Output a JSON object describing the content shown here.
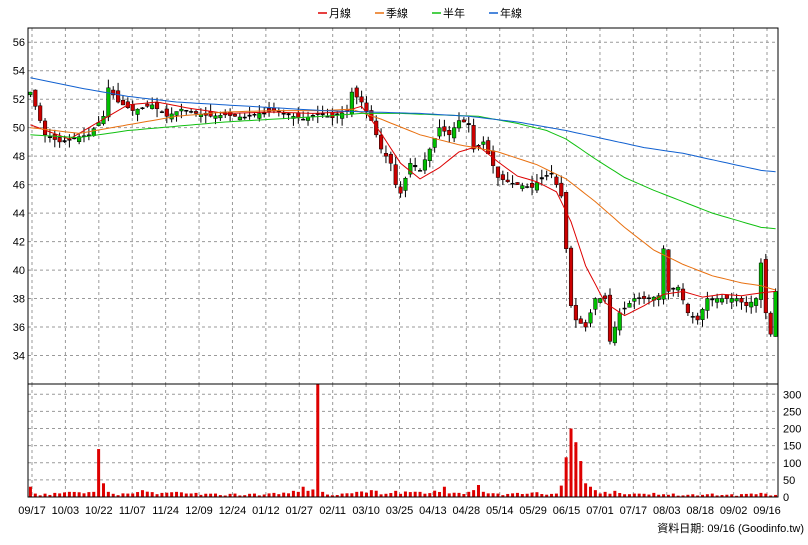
{
  "chart_data": {
    "type": "candlestick",
    "legend": [
      {
        "name": "月線",
        "color": "#dd0000"
      },
      {
        "name": "季線",
        "color": "#e87010"
      },
      {
        "name": "半年",
        "color": "#10c010"
      },
      {
        "name": "年線",
        "color": "#1060d0"
      }
    ],
    "x_tick_labels": [
      "09/17",
      "10/03",
      "10/22",
      "11/07",
      "11/24",
      "12/09",
      "12/24",
      "01/12",
      "01/27",
      "02/11",
      "03/10",
      "03/25",
      "04/13",
      "04/28",
      "05/14",
      "05/29",
      "06/15",
      "07/01",
      "07/17",
      "08/03",
      "08/18",
      "09/02",
      "09/16"
    ],
    "price_axis": {
      "ticks": [
        34,
        36,
        38,
        40,
        42,
        44,
        46,
        48,
        50,
        52,
        54,
        56
      ],
      "ylim": [
        32,
        57
      ]
    },
    "volume_axis": {
      "ticks": [
        0,
        50,
        100,
        150,
        200,
        250,
        300
      ],
      "ylim": [
        0,
        330
      ]
    },
    "colors": {
      "up": "#00c000",
      "down": "#cc0000",
      "flat": "#000000",
      "volume": "#dd0000"
    },
    "footer": "資料日期: 09/16  (Goodinfo.tw)",
    "series": {
      "close_anchors": [
        [
          0,
          52.5
        ],
        [
          3,
          49.5
        ],
        [
          6,
          49
        ],
        [
          9,
          49.3
        ],
        [
          12,
          49.5
        ],
        [
          15,
          50.8
        ],
        [
          16,
          52.8
        ],
        [
          18,
          51.8
        ],
        [
          21,
          51.2
        ],
        [
          25,
          51.6
        ],
        [
          28,
          50.8
        ],
        [
          31,
          51.3
        ],
        [
          34,
          51.0
        ],
        [
          37,
          50.8
        ],
        [
          40,
          50.9
        ],
        [
          44,
          50.7
        ],
        [
          47,
          51.0
        ],
        [
          50,
          51.2
        ],
        [
          53,
          50.9
        ],
        [
          56,
          50.6
        ],
        [
          59,
          51.0
        ],
        [
          62,
          50.7
        ],
        [
          65,
          51.2
        ],
        [
          66,
          52.5
        ],
        [
          68,
          51.8
        ],
        [
          70,
          50.5
        ],
        [
          72,
          48.5
        ],
        [
          74,
          47.5
        ],
        [
          75,
          46.0
        ],
        [
          76,
          45.4
        ],
        [
          78,
          47.5
        ],
        [
          80,
          47.0
        ],
        [
          82,
          48.5
        ],
        [
          84,
          50.0
        ],
        [
          86,
          49.5
        ],
        [
          88,
          50.5
        ],
        [
          90,
          50.3
        ],
        [
          91,
          48.5
        ],
        [
          93,
          49.0
        ],
        [
          96,
          46.5
        ],
        [
          98,
          46.2
        ],
        [
          100,
          46.0
        ],
        [
          103,
          45.8
        ],
        [
          105,
          46.5
        ],
        [
          107,
          46.8
        ],
        [
          109,
          45.2
        ],
        [
          110,
          41.5
        ],
        [
          111,
          37.5
        ],
        [
          112,
          36.5
        ],
        [
          114,
          36.0
        ],
        [
          116,
          38.0
        ],
        [
          118,
          38.0
        ],
        [
          119,
          35.0
        ],
        [
          121,
          37.0
        ],
        [
          124,
          38.0
        ],
        [
          127,
          38.0
        ],
        [
          129,
          38.2
        ],
        [
          130,
          41.5
        ],
        [
          131,
          38.5
        ],
        [
          133,
          38.8
        ],
        [
          135,
          37.0
        ],
        [
          137,
          36.5
        ],
        [
          139,
          38.0
        ],
        [
          141,
          38.0
        ],
        [
          143,
          38.0
        ],
        [
          145,
          38.0
        ],
        [
          147,
          37.5
        ],
        [
          149,
          38.0
        ],
        [
          150,
          40.5
        ],
        [
          151,
          37.0
        ],
        [
          152,
          35.5
        ],
        [
          153,
          38.5
        ]
      ],
      "ma20_anchors": [
        [
          0,
          50.2
        ],
        [
          8,
          49.2
        ],
        [
          14,
          50.4
        ],
        [
          20,
          51.6
        ],
        [
          26,
          51.8
        ],
        [
          32,
          51.4
        ],
        [
          40,
          51.0
        ],
        [
          50,
          51.1
        ],
        [
          58,
          51.0
        ],
        [
          64,
          51.1
        ],
        [
          68,
          51.5
        ],
        [
          72,
          49.6
        ],
        [
          76,
          47.5
        ],
        [
          80,
          46.4
        ],
        [
          84,
          47.2
        ],
        [
          88,
          48.3
        ],
        [
          92,
          48.7
        ],
        [
          96,
          47.6
        ],
        [
          100,
          46.6
        ],
        [
          104,
          46.2
        ],
        [
          108,
          45.5
        ],
        [
          111,
          43.4
        ],
        [
          114,
          40.3
        ],
        [
          118,
          37.7
        ],
        [
          122,
          36.8
        ],
        [
          126,
          37.5
        ],
        [
          130,
          38.3
        ],
        [
          134,
          38.5
        ],
        [
          138,
          38.1
        ],
        [
          142,
          38.3
        ],
        [
          146,
          38.2
        ],
        [
          150,
          38.4
        ],
        [
          153,
          38.5
        ]
      ],
      "ma60_anchors": [
        [
          0,
          50.0
        ],
        [
          10,
          49.6
        ],
        [
          20,
          50.2
        ],
        [
          30,
          50.8
        ],
        [
          40,
          51.1
        ],
        [
          50,
          51.2
        ],
        [
          60,
          51.2
        ],
        [
          66,
          51.3
        ],
        [
          72,
          50.6
        ],
        [
          80,
          49.5
        ],
        [
          88,
          48.8
        ],
        [
          96,
          48.3
        ],
        [
          104,
          47.4
        ],
        [
          110,
          46.4
        ],
        [
          116,
          44.8
        ],
        [
          122,
          43.0
        ],
        [
          128,
          41.4
        ],
        [
          134,
          40.4
        ],
        [
          140,
          39.6
        ],
        [
          146,
          39.1
        ],
        [
          150,
          38.9
        ],
        [
          153,
          38.6
        ]
      ],
      "ma120_anchors": [
        [
          0,
          49.5
        ],
        [
          10,
          49.3
        ],
        [
          20,
          49.8
        ],
        [
          30,
          50.1
        ],
        [
          40,
          50.4
        ],
        [
          50,
          50.6
        ],
        [
          60,
          50.8
        ],
        [
          68,
          51.0
        ],
        [
          76,
          51.0
        ],
        [
          84,
          50.9
        ],
        [
          92,
          50.8
        ],
        [
          100,
          50.3
        ],
        [
          106,
          49.8
        ],
        [
          110,
          49.2
        ],
        [
          116,
          47.8
        ],
        [
          122,
          46.5
        ],
        [
          128,
          45.6
        ],
        [
          134,
          44.8
        ],
        [
          140,
          44.0
        ],
        [
          146,
          43.4
        ],
        [
          150,
          43.0
        ],
        [
          153,
          42.9
        ]
      ],
      "ma240_anchors": [
        [
          0,
          53.5
        ],
        [
          10,
          52.8
        ],
        [
          20,
          52.2
        ],
        [
          30,
          51.8
        ],
        [
          40,
          51.6
        ],
        [
          50,
          51.4
        ],
        [
          60,
          51.2
        ],
        [
          70,
          51.1
        ],
        [
          80,
          51.0
        ],
        [
          90,
          50.8
        ],
        [
          100,
          50.4
        ],
        [
          110,
          49.8
        ],
        [
          118,
          49.2
        ],
        [
          126,
          48.6
        ],
        [
          134,
          48.2
        ],
        [
          142,
          47.6
        ],
        [
          150,
          47.0
        ],
        [
          153,
          46.9
        ]
      ],
      "volume_anchors": [
        [
          0,
          30
        ],
        [
          1,
          10
        ],
        [
          5,
          12
        ],
        [
          8,
          15
        ],
        [
          13,
          15
        ],
        [
          14,
          140
        ],
        [
          15,
          40
        ],
        [
          16,
          15
        ],
        [
          20,
          10
        ],
        [
          23,
          20
        ],
        [
          27,
          12
        ],
        [
          30,
          15
        ],
        [
          34,
          12
        ],
        [
          38,
          10
        ],
        [
          42,
          10
        ],
        [
          46,
          10
        ],
        [
          50,
          12
        ],
        [
          54,
          18
        ],
        [
          55,
          15
        ],
        [
          56,
          30
        ],
        [
          57,
          18
        ],
        [
          58,
          22
        ],
        [
          59,
          330
        ],
        [
          60,
          15
        ],
        [
          64,
          10
        ],
        [
          67,
          15
        ],
        [
          70,
          20
        ],
        [
          75,
          18
        ],
        [
          80,
          15
        ],
        [
          85,
          30
        ],
        [
          88,
          12
        ],
        [
          92,
          35
        ],
        [
          96,
          10
        ],
        [
          100,
          12
        ],
        [
          104,
          14
        ],
        [
          108,
          10
        ],
        [
          111,
          200
        ],
        [
          112,
          160
        ],
        [
          113,
          105
        ],
        [
          114,
          40
        ],
        [
          115,
          30
        ],
        [
          116,
          20
        ],
        [
          118,
          15
        ],
        [
          120,
          18
        ],
        [
          124,
          10
        ],
        [
          128,
          12
        ],
        [
          132,
          10
        ],
        [
          136,
          8
        ],
        [
          140,
          10
        ],
        [
          144,
          8
        ],
        [
          148,
          10
        ],
        [
          150,
          12
        ],
        [
          153,
          6
        ]
      ]
    }
  }
}
